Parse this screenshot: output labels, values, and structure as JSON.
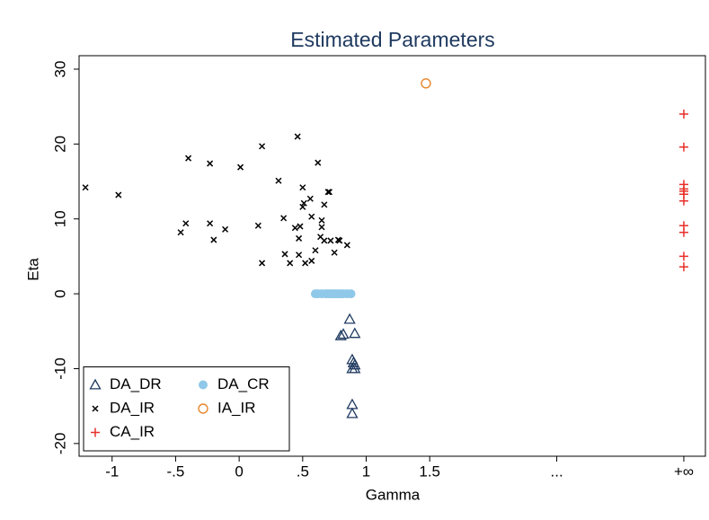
{
  "chart_data": {
    "type": "scatter",
    "title": "Estimated Parameters",
    "x_label": "Gamma",
    "y_label": "Eta",
    "xlim": [
      -1.26,
      3.67
    ],
    "ylim": [
      -21.7,
      31.8
    ],
    "xticks": [
      -1,
      {
        "value": -0.5,
        "label": "-.5"
      },
      0,
      {
        "value": 0.5,
        "label": ".5"
      },
      1,
      1.5,
      {
        "value": 2.5,
        "label": "..."
      },
      {
        "value": 3.5,
        "label": "+∞"
      }
    ],
    "yticks": [
      -20,
      -10,
      0,
      10,
      20,
      30
    ],
    "grid": false,
    "legend": "lower left",
    "series": [
      {
        "name": "DA_DR",
        "color": "#1f3a60",
        "marker": "triangle",
        "x": [
          0.87,
          0.91,
          0.8,
          0.82,
          0.89,
          0.9,
          0.89,
          0.91,
          0.91,
          0.89,
          0.89
        ],
        "values": [
          -3.4,
          -5.3,
          -5.6,
          -5.4,
          -8.8,
          -9.2,
          -10.0,
          -10.0,
          -9.5,
          -14.8,
          -16.0
        ]
      },
      {
        "name": "DA_CR",
        "color": "#8fc8e8",
        "marker": "circle",
        "x": [
          0.6,
          0.62,
          0.65,
          0.68,
          0.7,
          0.72,
          0.74,
          0.76,
          0.78,
          0.8,
          0.82,
          0.85,
          0.88
        ],
        "values": [
          0,
          0,
          0,
          0,
          0,
          0,
          0,
          0,
          0,
          0,
          0,
          0,
          0
        ]
      },
      {
        "name": "DA_IR",
        "color": "#000000",
        "marker": "x",
        "x": [
          -1.21,
          -0.95,
          -0.4,
          -0.46,
          -0.42,
          -0.23,
          -0.23,
          -0.2,
          -0.11,
          0.01,
          0.15,
          0.18,
          0.18,
          0.31,
          0.35,
          0.36,
          0.4,
          0.44,
          0.46,
          0.47,
          0.47,
          0.48,
          0.5,
          0.5,
          0.51,
          0.52,
          0.56,
          0.57,
          0.57,
          0.6,
          0.62,
          0.64,
          0.65,
          0.67,
          0.67,
          0.7,
          0.71,
          0.72,
          0.75,
          0.78,
          0.79,
          0.85,
          0.65
        ],
        "values": [
          14.2,
          13.2,
          18.1,
          8.2,
          9.4,
          17.4,
          9.4,
          7.2,
          8.6,
          16.9,
          9.1,
          4.1,
          19.7,
          15.1,
          10.1,
          5.3,
          4.1,
          8.8,
          21.0,
          7.4,
          5.2,
          9.0,
          14.2,
          11.6,
          12.1,
          4.1,
          12.7,
          10.3,
          4.4,
          5.8,
          17.5,
          7.6,
          9.8,
          11.9,
          7.1,
          13.6,
          13.6,
          7.1,
          5.5,
          7.2,
          7.1,
          6.5,
          8.9
        ]
      },
      {
        "name": "IA_IR",
        "color": "#e8862a",
        "marker": "circle-open",
        "x": [
          1.47
        ],
        "values": [
          28.1
        ]
      },
      {
        "name": "CA_IR",
        "color": "#e8302a",
        "marker": "plus",
        "x": [
          3.5,
          3.5,
          3.5,
          3.5,
          3.5,
          3.5,
          3.5,
          3.5,
          3.5,
          3.5,
          3.5
        ],
        "values": [
          24.0,
          19.6,
          14.6,
          14.0,
          13.7,
          13.3,
          12.4,
          9.1,
          8.2,
          5.0,
          3.6
        ]
      }
    ]
  }
}
